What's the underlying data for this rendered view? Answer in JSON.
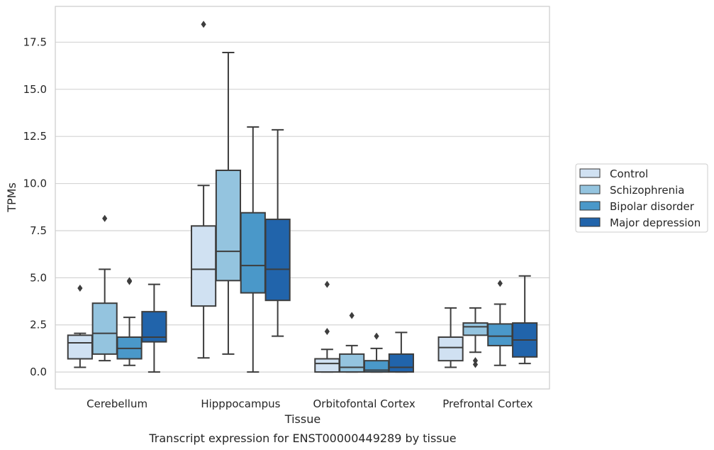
{
  "chart_data": {
    "type": "box",
    "caption": "Transcript expression for ENST00000449289 by tissue",
    "xlabel": "Tissue",
    "ylabel": "TPMs",
    "ylim": [
      -0.9,
      19.4
    ],
    "yticks": [
      "0.0",
      "2.5",
      "5.0",
      "7.5",
      "10.0",
      "12.5",
      "15.0",
      "17.5"
    ],
    "ytick_values": [
      0,
      2.5,
      5,
      7.5,
      10,
      12.5,
      15,
      17.5
    ],
    "grid": "horizontal",
    "legend_position": "right",
    "categories": [
      "Cerebellum",
      "Hipppocampus",
      "Orbitofontal Cortex",
      "Prefrontal Cortex"
    ],
    "series": [
      {
        "name": "Control",
        "color": "#d0e1f2",
        "boxes": [
          {
            "whisker_low": 0.25,
            "q1": 0.7,
            "median": 1.55,
            "q3": 1.95,
            "whisker_high": 2.05,
            "outliers": [
              4.45
            ]
          },
          {
            "whisker_low": 0.75,
            "q1": 3.5,
            "median": 5.45,
            "q3": 7.75,
            "whisker_high": 9.9,
            "outliers": [
              18.45
            ]
          },
          {
            "whisker_low": 0.0,
            "q1": 0.0,
            "median": 0.45,
            "q3": 0.7,
            "whisker_high": 1.2,
            "outliers": [
              2.15,
              4.65
            ]
          },
          {
            "whisker_low": 0.25,
            "q1": 0.6,
            "median": 1.3,
            "q3": 1.85,
            "whisker_high": 3.4,
            "outliers": []
          }
        ]
      },
      {
        "name": "Schizophrenia",
        "color": "#94c4df",
        "boxes": [
          {
            "whisker_low": 0.6,
            "q1": 0.95,
            "median": 2.05,
            "q3": 3.65,
            "whisker_high": 5.45,
            "outliers": [
              8.15
            ]
          },
          {
            "whisker_low": 0.95,
            "q1": 4.85,
            "median": 6.4,
            "q3": 10.7,
            "whisker_high": 16.95,
            "outliers": []
          },
          {
            "whisker_low": 0.0,
            "q1": 0.0,
            "median": 0.25,
            "q3": 0.95,
            "whisker_high": 1.4,
            "outliers": [
              3.0
            ]
          },
          {
            "whisker_low": 1.05,
            "q1": 1.95,
            "median": 2.4,
            "q3": 2.6,
            "whisker_high": 3.4,
            "outliers": [
              0.4,
              0.6
            ]
          }
        ]
      },
      {
        "name": "Bipolar disorder",
        "color": "#4a98c9",
        "boxes": [
          {
            "whisker_low": 0.35,
            "q1": 0.7,
            "median": 1.25,
            "q3": 1.85,
            "whisker_high": 2.9,
            "outliers": [
              4.8,
              4.85
            ]
          },
          {
            "whisker_low": 0.0,
            "q1": 4.2,
            "median": 5.65,
            "q3": 8.45,
            "whisker_high": 13.0,
            "outliers": []
          },
          {
            "whisker_low": 0.0,
            "q1": 0.0,
            "median": 0.1,
            "q3": 0.6,
            "whisker_high": 1.25,
            "outliers": [
              1.9
            ]
          },
          {
            "whisker_low": 0.35,
            "q1": 1.4,
            "median": 1.9,
            "q3": 2.55,
            "whisker_high": 3.6,
            "outliers": [
              4.7
            ]
          }
        ]
      },
      {
        "name": "Major depression",
        "color": "#2164ab",
        "boxes": [
          {
            "whisker_low": 0.0,
            "q1": 1.6,
            "median": 1.85,
            "q3": 3.2,
            "whisker_high": 4.65,
            "outliers": []
          },
          {
            "whisker_low": 1.9,
            "q1": 3.8,
            "median": 5.45,
            "q3": 8.1,
            "whisker_high": 12.85,
            "outliers": []
          },
          {
            "whisker_low": 0.0,
            "q1": 0.0,
            "median": 0.25,
            "q3": 0.95,
            "whisker_high": 2.1,
            "outliers": []
          },
          {
            "whisker_low": 0.45,
            "q1": 0.8,
            "median": 1.7,
            "q3": 2.6,
            "whisker_high": 5.1,
            "outliers": []
          }
        ]
      }
    ]
  }
}
